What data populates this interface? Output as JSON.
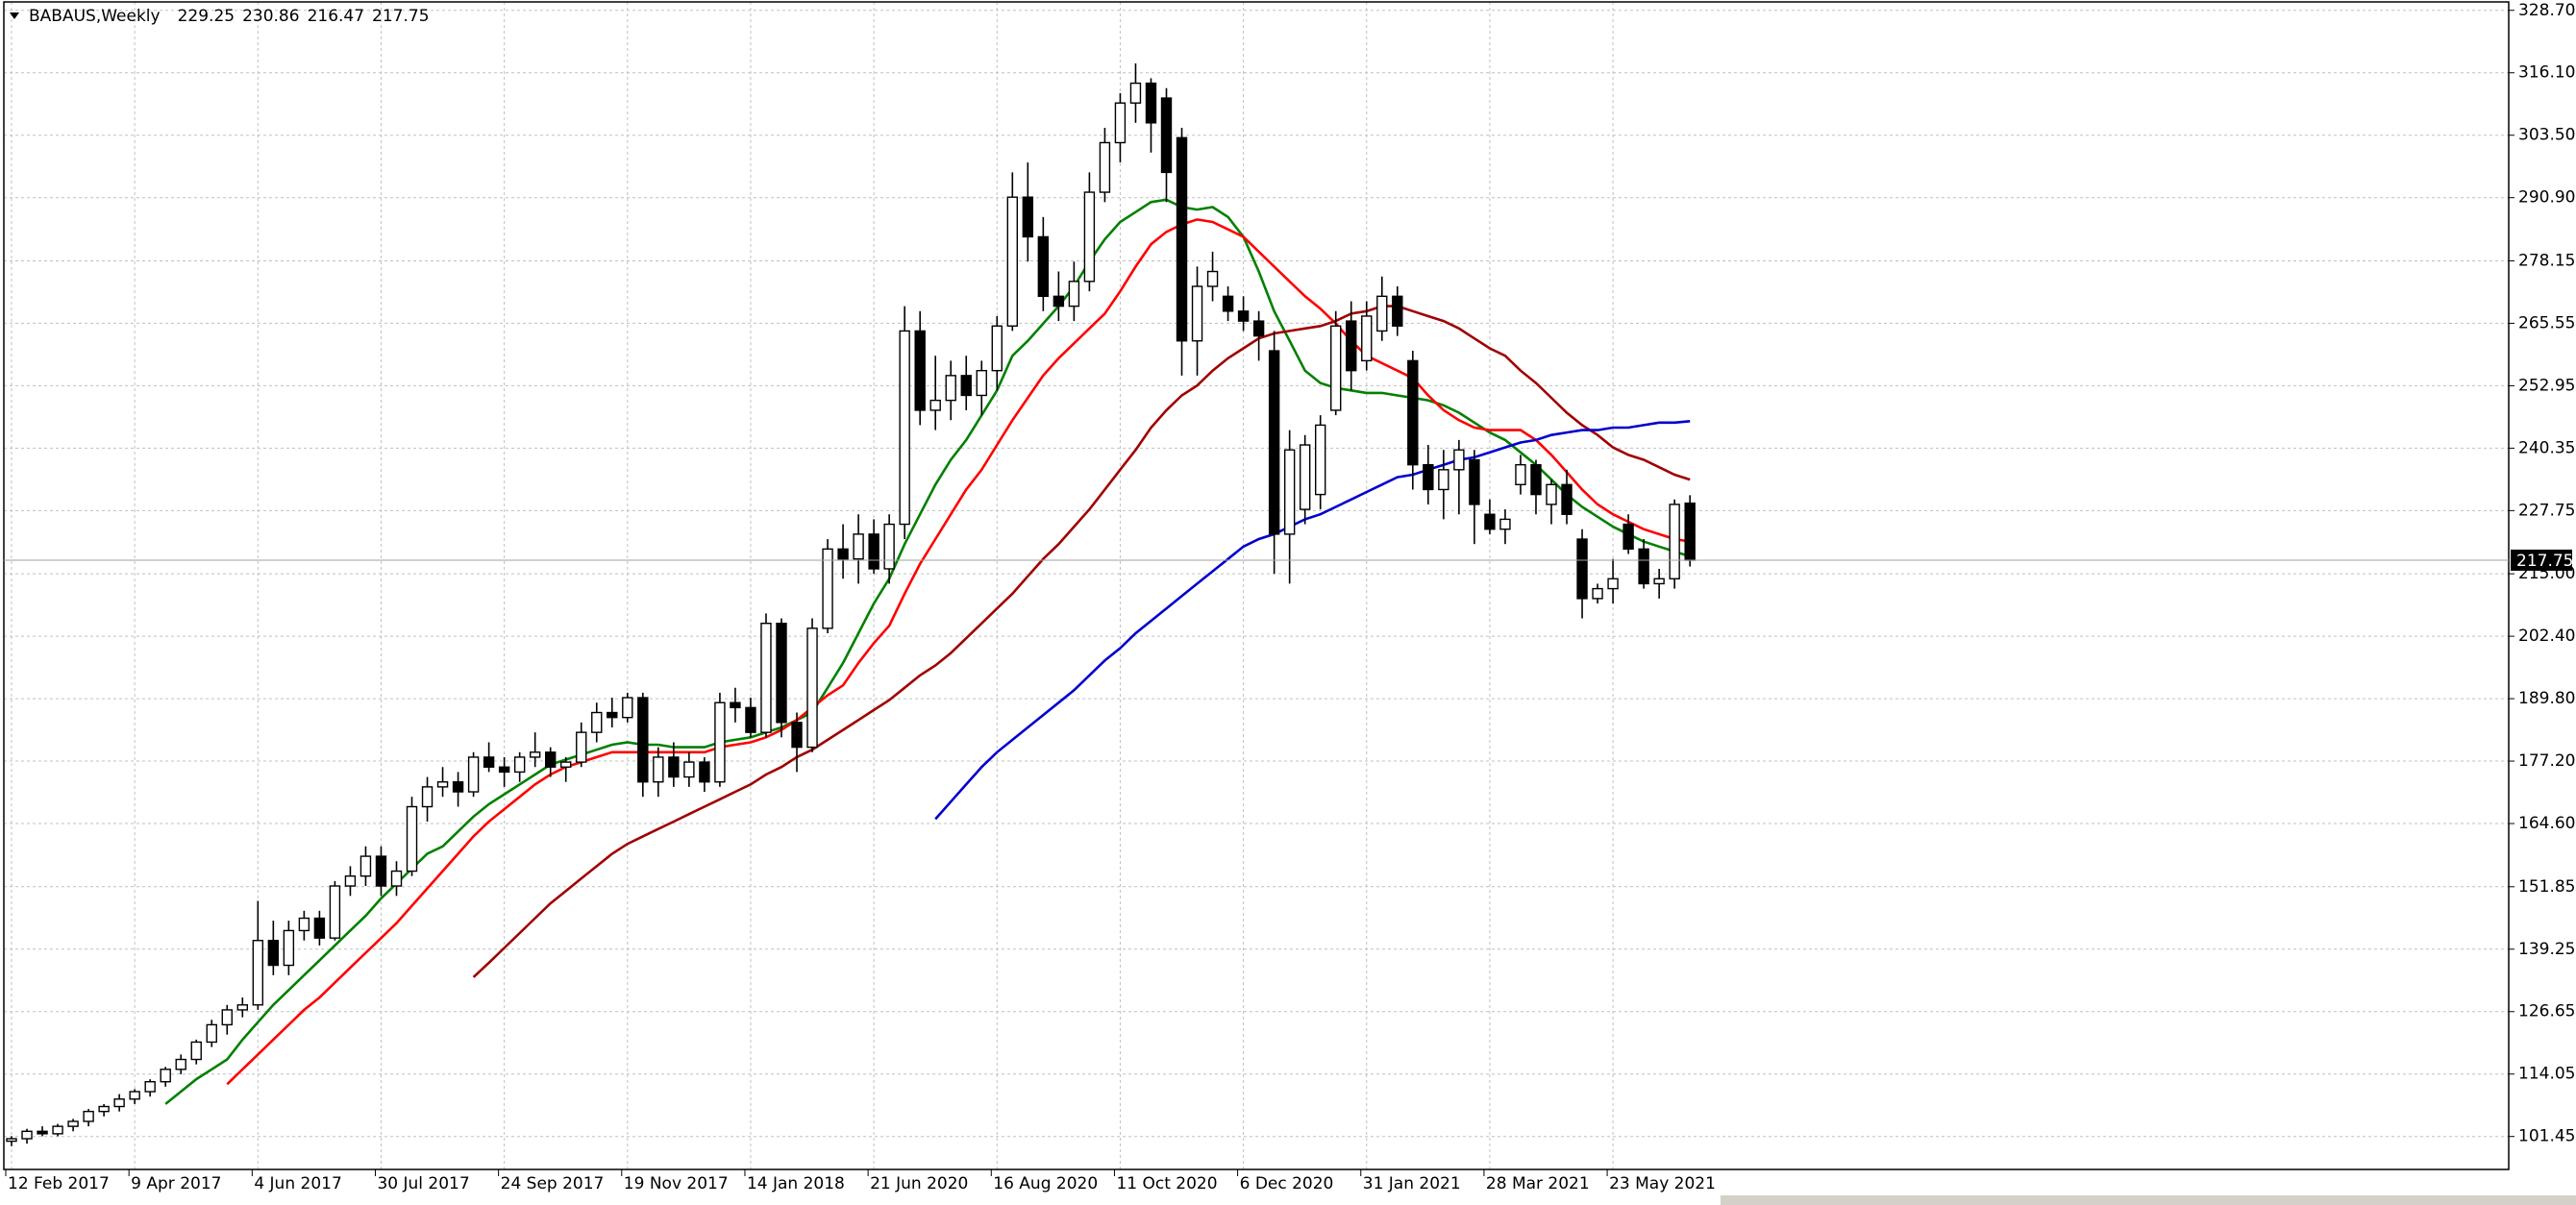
{
  "chart_data": {
    "type": "candlestick",
    "title": "BABAUS,Weekly",
    "categories": [
      "12 Feb 2017",
      null,
      null,
      null,
      null,
      null,
      null,
      null,
      "9 Apr 2017",
      null,
      null,
      null,
      null,
      null,
      null,
      null,
      "4 Jun 2017",
      null,
      null,
      null,
      null,
      null,
      null,
      null,
      "30 Jul 2017",
      null,
      null,
      null,
      null,
      null,
      null,
      null,
      "24 Sep 2017",
      null,
      null,
      null,
      null,
      null,
      null,
      null,
      "19 Nov 2017",
      null,
      null,
      null,
      null,
      null,
      null,
      null,
      "14 Jan 2018",
      null,
      null,
      null,
      null,
      null,
      null,
      null,
      "21 Jun 2020",
      null,
      null,
      null,
      null,
      null,
      null,
      null,
      "16 Aug 2020",
      null,
      null,
      null,
      null,
      null,
      null,
      null,
      "11 Oct 2020",
      null,
      null,
      null,
      null,
      null,
      null,
      null,
      "6 Dec 2020",
      null,
      null,
      null,
      null,
      null,
      null,
      null,
      "31 Jan 2021",
      null,
      null,
      null,
      null,
      null,
      null,
      null,
      "28 Mar 2021",
      null,
      null,
      null,
      null,
      null,
      null,
      null,
      "23 May 2021",
      null,
      null,
      null,
      null,
      null
    ],
    "open": [
      100.5,
      101,
      102.5,
      102,
      103.5,
      104.5,
      106.5,
      107.5,
      109,
      110.5,
      112.5,
      115,
      117,
      120.5,
      124,
      127,
      128,
      141,
      136,
      143,
      145.5,
      141.5,
      152,
      154,
      158,
      152,
      155,
      168,
      172,
      173,
      171,
      178,
      176,
      175,
      178,
      179,
      176,
      177,
      183,
      187,
      186,
      190,
      173,
      178,
      174,
      177,
      173,
      189,
      188,
      183,
      205,
      185,
      180,
      204,
      220,
      218,
      223,
      216,
      225,
      264,
      248,
      250,
      255,
      251,
      256,
      265,
      291,
      283,
      271,
      269,
      274,
      292,
      302,
      310,
      314,
      311,
      303,
      262,
      273,
      271,
      268,
      266,
      260,
      223,
      228,
      231,
      248,
      266,
      258,
      264,
      271,
      258,
      237,
      232,
      236,
      238,
      227,
      224,
      233,
      237,
      229,
      233,
      222,
      210,
      212,
      225,
      220,
      213,
      214,
      229.25
    ],
    "high": [
      101.5,
      103,
      103.5,
      104,
      105,
      107,
      108,
      110,
      111,
      113,
      115.5,
      118,
      121,
      125,
      128,
      129.5,
      149,
      145,
      145,
      147,
      147,
      153,
      156,
      160,
      160,
      157,
      170,
      174,
      176,
      175,
      179,
      181,
      178,
      179,
      183,
      180,
      178,
      185,
      189,
      190,
      191,
      191,
      180,
      181,
      179,
      178,
      191,
      192,
      190,
      207,
      206,
      187,
      206,
      222,
      225,
      227,
      226,
      227,
      269,
      268,
      259,
      258,
      259,
      258,
      267,
      296,
      298,
      287,
      276,
      278,
      296,
      305,
      312,
      318,
      315,
      313,
      305,
      277,
      280,
      273,
      271,
      268,
      264,
      244,
      243,
      247,
      268,
      270,
      270,
      275,
      273,
      260,
      241,
      240,
      242,
      240,
      230,
      228,
      239,
      238,
      234,
      236,
      224,
      213,
      218,
      227,
      222,
      216,
      230,
      230.86
    ],
    "low": [
      99.5,
      100,
      101.5,
      101.5,
      102.5,
      103.5,
      105.5,
      106.5,
      108,
      109.5,
      111.5,
      114,
      116,
      119.5,
      122,
      125.5,
      127,
      134,
      134,
      141,
      140,
      141,
      150,
      152,
      150,
      150,
      154,
      165,
      170,
      168,
      170,
      175,
      172,
      173,
      176,
      174,
      173,
      176,
      181,
      184,
      185,
      170,
      170,
      172,
      172,
      171,
      172,
      185,
      182,
      182,
      182,
      175,
      179,
      203,
      214,
      213,
      215,
      213,
      222,
      245,
      244,
      246,
      248,
      247,
      252,
      264,
      278,
      268,
      266,
      266,
      272,
      290,
      298,
      306,
      300,
      290,
      255,
      255,
      270,
      266,
      264,
      258,
      215,
      213,
      225,
      228,
      247,
      252,
      256,
      262,
      263,
      232,
      229,
      226,
      227,
      221,
      223,
      221,
      231,
      227,
      225,
      225,
      206,
      209,
      209,
      219,
      212,
      210,
      212,
      216.47
    ],
    "close": [
      101,
      102.5,
      102,
      103.5,
      104.5,
      106.5,
      107.5,
      109,
      110.5,
      112.5,
      115,
      117,
      120.5,
      124,
      127,
      128,
      141,
      136,
      143,
      145.5,
      141.5,
      152,
      154,
      158,
      152,
      155,
      168,
      172,
      173,
      171,
      178,
      176,
      175,
      178,
      179,
      176,
      177,
      183,
      187,
      186,
      190,
      173,
      178,
      174,
      177,
      173,
      189,
      188,
      183,
      205,
      185,
      180,
      204,
      220,
      218,
      223,
      216,
      225,
      264,
      248,
      250,
      255,
      251,
      256,
      265,
      291,
      283,
      271,
      269,
      274,
      292,
      302,
      310,
      314,
      306,
      296,
      262,
      273,
      276,
      268,
      266,
      263,
      223,
      240,
      241,
      245,
      265,
      256,
      267,
      271,
      265,
      237,
      232,
      236,
      240,
      229,
      224,
      226,
      237,
      231,
      233,
      227,
      210,
      212,
      214,
      220,
      213,
      214,
      229,
      217.75
    ],
    "up_color": "#ffffff",
    "down_color": "#000000",
    "lines": [
      {
        "color": "#008000",
        "values": [
          null,
          null,
          null,
          null,
          null,
          null,
          null,
          null,
          null,
          null,
          108,
          110.5,
          113,
          115,
          117,
          121,
          124.5,
          128,
          131,
          134,
          137,
          140,
          143,
          146,
          149.5,
          152.5,
          155.5,
          158.5,
          160,
          163,
          166,
          168.5,
          170.5,
          172.5,
          174.5,
          176.5,
          177.5,
          178.5,
          179.5,
          180.5,
          181,
          180.5,
          180.5,
          180,
          180,
          180,
          181,
          181.5,
          182,
          183,
          184,
          185.5,
          187,
          192,
          197,
          203,
          209,
          214,
          221,
          227,
          233,
          238,
          242,
          247,
          252,
          259,
          262,
          265.5,
          269,
          273,
          278,
          282.5,
          286,
          288,
          290,
          290.5,
          289,
          288.5,
          289,
          287,
          283,
          276,
          268,
          262,
          256,
          253.5,
          252.5,
          252,
          251.5,
          251.5,
          251,
          250.5,
          250,
          249,
          247.5,
          245.5,
          243.5,
          242,
          239.5,
          237,
          234,
          231,
          228.5,
          226.5,
          224.5,
          223,
          221.5,
          220.5,
          219.5,
          218.5
        ]
      },
      {
        "color": "#ff0000",
        "values": [
          null,
          null,
          null,
          null,
          null,
          null,
          null,
          null,
          null,
          null,
          null,
          null,
          null,
          null,
          112,
          115,
          118,
          121,
          124,
          127,
          129.5,
          132.5,
          135.5,
          138.5,
          141.5,
          144.5,
          148,
          151.5,
          155,
          158.5,
          162,
          165,
          167.5,
          170,
          172.5,
          174.5,
          176,
          177,
          178,
          179,
          179,
          179,
          179,
          179,
          179,
          179,
          180,
          180.5,
          181,
          182,
          183.5,
          185.5,
          188,
          190.5,
          192.5,
          197,
          201,
          204.5,
          211,
          217,
          222,
          227,
          232,
          236,
          241,
          246,
          250.5,
          255,
          258.5,
          261.5,
          264.5,
          267.5,
          272,
          277,
          281.5,
          284,
          285.5,
          286.5,
          286,
          284.5,
          283,
          280,
          277,
          274,
          271,
          268.5,
          265.5,
          262,
          259,
          257.5,
          256,
          254.5,
          251,
          248,
          246,
          244.5,
          244,
          244,
          244,
          242,
          239,
          235.5,
          232,
          229,
          227,
          225.5,
          224,
          223,
          222,
          221.5
        ]
      },
      {
        "color": "#a00000",
        "values": [
          null,
          null,
          null,
          null,
          null,
          null,
          null,
          null,
          null,
          null,
          null,
          null,
          null,
          null,
          null,
          null,
          null,
          null,
          null,
          null,
          null,
          null,
          null,
          null,
          null,
          null,
          null,
          null,
          null,
          null,
          133.6,
          136.5,
          139.5,
          142.5,
          145.5,
          148.5,
          151,
          153.5,
          156,
          158.5,
          160.5,
          162,
          163.5,
          165,
          166.5,
          168,
          169.5,
          171,
          172.5,
          174.5,
          176,
          178,
          179.5,
          181.5,
          183.5,
          185.5,
          187.5,
          189.5,
          192,
          194.5,
          196.5,
          199,
          202,
          205,
          208,
          211,
          214.5,
          218,
          221,
          224.5,
          228,
          232,
          236,
          240,
          244.5,
          248,
          251,
          253,
          256,
          258.5,
          260.5,
          262.5,
          263.5,
          264,
          264.5,
          265,
          266,
          267.5,
          268,
          269,
          269,
          268,
          267,
          266,
          264.5,
          262.5,
          260.5,
          259,
          256,
          253.5,
          250.5,
          247.5,
          245,
          243,
          240.5,
          239,
          238,
          236.5,
          235,
          234
        ]
      },
      {
        "color": "#0000cd",
        "values": [
          null,
          null,
          null,
          null,
          null,
          null,
          null,
          null,
          null,
          null,
          null,
          null,
          null,
          null,
          null,
          null,
          null,
          null,
          null,
          null,
          null,
          null,
          null,
          null,
          null,
          null,
          null,
          null,
          null,
          null,
          null,
          null,
          null,
          null,
          null,
          null,
          null,
          null,
          null,
          null,
          null,
          null,
          null,
          null,
          null,
          null,
          null,
          null,
          null,
          null,
          null,
          null,
          null,
          null,
          null,
          null,
          null,
          null,
          null,
          null,
          165.5,
          169,
          172.5,
          176,
          179,
          181.5,
          184,
          186.5,
          189,
          191.5,
          194.5,
          197.5,
          200,
          203,
          205.5,
          208,
          210.5,
          213,
          215.5,
          218,
          220.5,
          222,
          223,
          224.5,
          226,
          227,
          228.5,
          230,
          231.5,
          233,
          234.5,
          235,
          236,
          237,
          238,
          238.5,
          239.5,
          240.5,
          241.5,
          242,
          243,
          243.5,
          244,
          244,
          244.5,
          244.5,
          245,
          245.5,
          245.5,
          245.8
        ]
      }
    ],
    "ylim": [
      94.8,
      330.4
    ],
    "yticks": [
      101.45,
      114.05,
      126.65,
      139.25,
      151.85,
      {
        "value": 164.6,
        "label": "164.60"
      },
      {
        "value": 177.2,
        "label": "177.20"
      },
      {
        "value": 189.8,
        "label": "189.80"
      },
      {
        "value": 202.4,
        "label": "202.40"
      },
      {
        "value": 215,
        "label": "215.00"
      },
      227.75,
      240.35,
      252.95,
      265.55,
      278.15,
      {
        "value": 290.9,
        "label": "290.90"
      },
      {
        "value": 303.5,
        "label": "303.50"
      },
      {
        "value": 316.1,
        "label": "316.10"
      },
      {
        "value": 328.7,
        "label": "328.70"
      }
    ],
    "grid": true
  }
}
